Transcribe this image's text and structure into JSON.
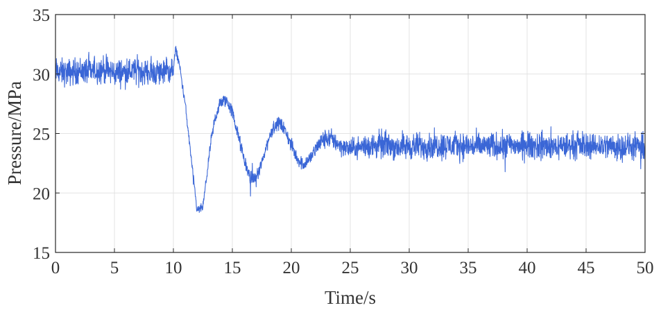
{
  "chart_data": {
    "type": "line",
    "xlabel": "Time/s",
    "ylabel": "Pressure/MPa",
    "xlim": [
      0,
      50
    ],
    "ylim": [
      15,
      35
    ],
    "xticks": [
      0,
      5,
      10,
      15,
      20,
      25,
      30,
      35,
      40,
      45,
      50
    ],
    "yticks": [
      15,
      20,
      25,
      30,
      35
    ],
    "xtick_labels": [
      "0",
      "5",
      "10",
      "15",
      "20",
      "25",
      "30",
      "35",
      "40",
      "45",
      "50"
    ],
    "ytick_labels": [
      "15",
      "20",
      "25",
      "30",
      "35"
    ],
    "grid": true,
    "line_color": "#3a66d6",
    "series": [
      {
        "x": [
          0,
          1,
          2,
          3,
          4,
          5,
          6,
          7,
          8,
          9,
          10,
          10.2,
          10.5,
          11,
          11.5,
          12,
          12.5,
          13,
          13.5,
          14,
          14.5,
          15,
          15.5,
          16,
          16.5,
          17,
          17.5,
          18,
          18.5,
          19,
          19.5,
          20,
          20.5,
          21,
          21.5,
          22,
          22.5,
          23,
          23.5,
          24,
          24.5,
          25,
          26,
          27,
          28,
          29,
          30,
          32,
          34,
          36,
          38,
          40,
          42,
          44,
          46,
          48,
          50
        ],
        "y": [
          30.2,
          30.1,
          30.3,
          30.2,
          30.4,
          30.1,
          30.2,
          30.3,
          30.1,
          30.2,
          30.3,
          32.2,
          30.8,
          27.5,
          23.0,
          18.5,
          18.8,
          22.8,
          26.2,
          27.6,
          27.8,
          26.8,
          24.8,
          22.8,
          21.3,
          21.2,
          22.5,
          24.3,
          25.6,
          25.9,
          25.2,
          24.0,
          22.9,
          22.4,
          22.8,
          23.6,
          24.3,
          24.6,
          24.5,
          24.1,
          23.8,
          23.7,
          23.9,
          24.0,
          24.1,
          23.9,
          23.9,
          24.0,
          24.0,
          23.9,
          24.0,
          24.0,
          23.9,
          24.0,
          24.0,
          23.9,
          23.8
        ]
      }
    ]
  }
}
